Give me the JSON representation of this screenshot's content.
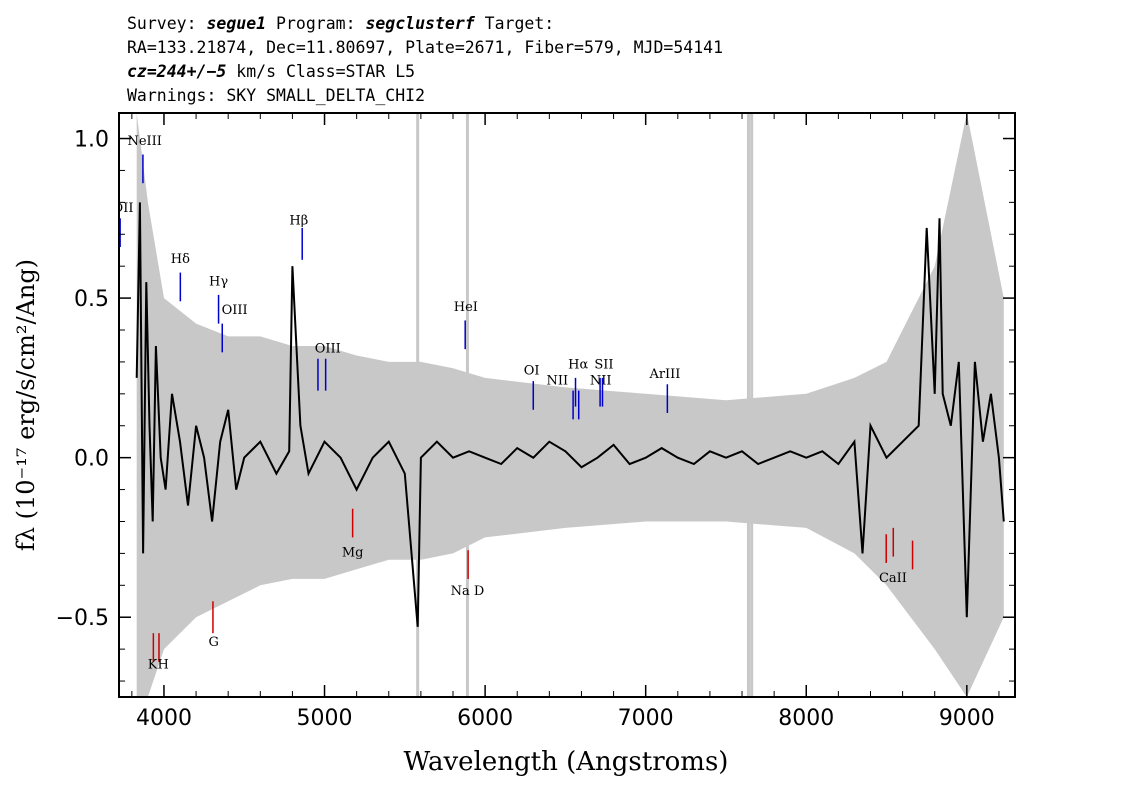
{
  "header": {
    "line1": {
      "survey_label": "Survey: ",
      "survey": "segue1",
      "program_label": " Program: ",
      "program": "segclusterf",
      "target_label": " Target:"
    },
    "line2": "RA=133.21874, Dec=11.80697, Plate=2671, Fiber=579, MJD=54141",
    "line3": {
      "cz": "cz=244+/−5",
      "rest": " km/s Class=STAR L5"
    },
    "line4": "Warnings: SKY SMALL_DELTA_CHI2"
  },
  "chart_data": {
    "type": "line",
    "xlabel": "Wavelength (Angstroms)",
    "ylabel": "fλ (10⁻¹⁷ erg/s/cm²/Ang)",
    "xlim": [
      3720,
      9300
    ],
    "ylim": [
      -0.75,
      1.08
    ],
    "x_ticks": [
      4000,
      5000,
      6000,
      7000,
      8000,
      9000
    ],
    "x_tick_labels": [
      "4000",
      "5000",
      "6000",
      "7000",
      "8000",
      "9000"
    ],
    "y_ticks": [
      -0.5,
      0.0,
      0.5,
      1.0
    ],
    "y_tick_labels": [
      "−0.5",
      "0.0",
      "0.5",
      "1.0"
    ],
    "grid": false,
    "colors": {
      "flux": "#000000",
      "error": "#c8c8c8",
      "emission": "#0000cc",
      "absorption": "#cc0000"
    },
    "series": [
      {
        "style": "black line",
        "x": [
          3830,
          3850,
          3870,
          3890,
          3910,
          3930,
          3950,
          3980,
          4010,
          4050,
          4100,
          4150,
          4200,
          4250,
          4300,
          4350,
          4400,
          4450,
          4500,
          4600,
          4700,
          4780,
          4800,
          4850,
          4900,
          4950,
          5000,
          5100,
          5200,
          5300,
          5400,
          5500,
          5580,
          5600,
          5700,
          5800,
          5900,
          6000,
          6100,
          6200,
          6300,
          6400,
          6500,
          6600,
          6700,
          6800,
          6900,
          7000,
          7100,
          7200,
          7300,
          7400,
          7500,
          7600,
          7700,
          7800,
          7900,
          8000,
          8100,
          8200,
          8300,
          8350,
          8400,
          8500,
          8600,
          8700,
          8750,
          8800,
          8830,
          8850,
          8900,
          8950,
          9000,
          9050,
          9100,
          9150,
          9200,
          9230
        ],
        "y": [
          0.25,
          0.8,
          -0.3,
          0.55,
          0.1,
          -0.2,
          0.35,
          0.0,
          -0.1,
          0.2,
          0.05,
          -0.15,
          0.1,
          0.0,
          -0.2,
          0.05,
          0.15,
          -0.1,
          0.0,
          0.05,
          -0.05,
          0.02,
          0.6,
          0.1,
          -0.05,
          0.0,
          0.05,
          0.0,
          -0.1,
          0.0,
          0.05,
          -0.05,
          -0.53,
          0.0,
          0.05,
          0.0,
          0.02,
          0.0,
          -0.02,
          0.03,
          0.0,
          0.05,
          0.02,
          -0.03,
          0.0,
          0.04,
          -0.02,
          0.0,
          0.03,
          0.0,
          -0.02,
          0.02,
          0.0,
          0.02,
          -0.02,
          0.0,
          0.02,
          0.0,
          0.02,
          -0.02,
          0.05,
          -0.3,
          0.1,
          0.0,
          0.05,
          0.1,
          0.72,
          0.2,
          0.75,
          0.2,
          0.1,
          0.3,
          -0.5,
          0.3,
          0.05,
          0.2,
          0.0,
          -0.2
        ]
      },
      {
        "style": "gray error band",
        "x": [
          3830,
          3900,
          4000,
          4200,
          4400,
          4600,
          4800,
          5000,
          5200,
          5400,
          5600,
          5800,
          6000,
          6500,
          7000,
          7500,
          8000,
          8300,
          8500,
          8800,
          9000,
          9230
        ],
        "upper": [
          1.08,
          0.8,
          0.5,
          0.42,
          0.38,
          0.38,
          0.35,
          0.35,
          0.32,
          0.3,
          0.3,
          0.28,
          0.25,
          0.22,
          0.2,
          0.18,
          0.2,
          0.25,
          0.3,
          0.6,
          1.08,
          0.5
        ],
        "lower": [
          -0.75,
          -0.75,
          -0.6,
          -0.5,
          -0.45,
          -0.4,
          -0.38,
          -0.38,
          -0.35,
          -0.32,
          -0.32,
          -0.3,
          -0.25,
          -0.22,
          -0.2,
          -0.2,
          -0.22,
          -0.3,
          -0.4,
          -0.6,
          -0.75,
          -0.5
        ]
      }
    ],
    "vertical_spikes": [
      {
        "x": 5580
      },
      {
        "x": 5890
      },
      {
        "x": 7640
      },
      {
        "x": 7660
      }
    ],
    "emission_lines": [
      {
        "name": "NeIII",
        "x": 3869,
        "y0": 0.86,
        "y1": 0.95
      },
      {
        "name": "OII",
        "x": 3727,
        "y0": 0.66,
        "y1": 0.75
      },
      {
        "name": "Hδ",
        "x": 4102,
        "y0": 0.49,
        "y1": 0.58
      },
      {
        "name": "Hγ",
        "x": 4340,
        "y0": 0.42,
        "y1": 0.51
      },
      {
        "name": "OIII",
        "x": 4363,
        "y0": 0.33,
        "y1": 0.42
      },
      {
        "name": "Hβ",
        "x": 4861,
        "y0": 0.62,
        "y1": 0.72
      },
      {
        "name": "OIII",
        "x": 4959,
        "y0": 0.21,
        "y1": 0.31
      },
      {
        "name": "OIII",
        "x": 5007,
        "y0": 0.21,
        "y1": 0.31
      },
      {
        "name": "HeI",
        "x": 5876,
        "y0": 0.34,
        "y1": 0.43
      },
      {
        "name": "OI",
        "x": 6300,
        "y0": 0.15,
        "y1": 0.24
      },
      {
        "name": "NII",
        "x": 6548,
        "y0": 0.12,
        "y1": 0.21
      },
      {
        "name": "Hα",
        "x": 6563,
        "y0": 0.16,
        "y1": 0.25
      },
      {
        "name": "NII",
        "x": 6583,
        "y0": 0.12,
        "y1": 0.21
      },
      {
        "name": "SII",
        "x": 6716,
        "y0": 0.16,
        "y1": 0.25
      },
      {
        "name": "SII",
        "x": 6731,
        "y0": 0.16,
        "y1": 0.25
      },
      {
        "name": "ArIII",
        "x": 7135,
        "y0": 0.14,
        "y1": 0.23
      }
    ],
    "absorption_lines": [
      {
        "name": "K",
        "x": 3934,
        "y0": -0.64,
        "y1": -0.55
      },
      {
        "name": "H",
        "x": 3969,
        "y0": -0.64,
        "y1": -0.55
      },
      {
        "name": "G",
        "x": 4305,
        "y0": -0.55,
        "y1": -0.45
      },
      {
        "name": "Mg",
        "x": 5175,
        "y0": -0.25,
        "y1": -0.16
      },
      {
        "name": "Na D",
        "x": 5894,
        "y0": -0.38,
        "y1": -0.29
      },
      {
        "name": "CaII",
        "x": 8498,
        "y0": -0.33,
        "y1": -0.24
      },
      {
        "name": "CaII",
        "x": 8542,
        "y0": -0.31,
        "y1": -0.22
      },
      {
        "name": "CaII",
        "x": 8662,
        "y0": -0.35,
        "y1": -0.26
      }
    ],
    "line_labels": [
      {
        "text": "NeIII",
        "x": 3880,
        "y": 0.98
      },
      {
        "text": "OII",
        "x": 3745,
        "y": 0.77
      },
      {
        "text": "Hδ",
        "x": 4102,
        "y": 0.61
      },
      {
        "text": "Hγ",
        "x": 4340,
        "y": 0.54
      },
      {
        "text": "OIII",
        "x": 4440,
        "y": 0.45
      },
      {
        "text": "Hβ",
        "x": 4840,
        "y": 0.73
      },
      {
        "text": "OIII",
        "x": 5020,
        "y": 0.33
      },
      {
        "text": "HeI",
        "x": 5880,
        "y": 0.46
      },
      {
        "text": "OI",
        "x": 6290,
        "y": 0.26
      },
      {
        "text": "NII",
        "x": 6450,
        "y": 0.23
      },
      {
        "text": "Hα",
        "x": 6580,
        "y": 0.28
      },
      {
        "text": "SII",
        "x": 6740,
        "y": 0.28
      },
      {
        "text": "NII",
        "x": 6720,
        "y": 0.23
      },
      {
        "text": "ArIII",
        "x": 7120,
        "y": 0.25
      },
      {
        "text": "KH",
        "x": 3965,
        "y": -0.66
      },
      {
        "text": "G",
        "x": 4310,
        "y": -0.59
      },
      {
        "text": "Mg",
        "x": 5175,
        "y": -0.31
      },
      {
        "text": "Na  D",
        "x": 5890,
        "y": -0.43
      },
      {
        "text": "CaII",
        "x": 8540,
        "y": -0.39
      }
    ]
  }
}
